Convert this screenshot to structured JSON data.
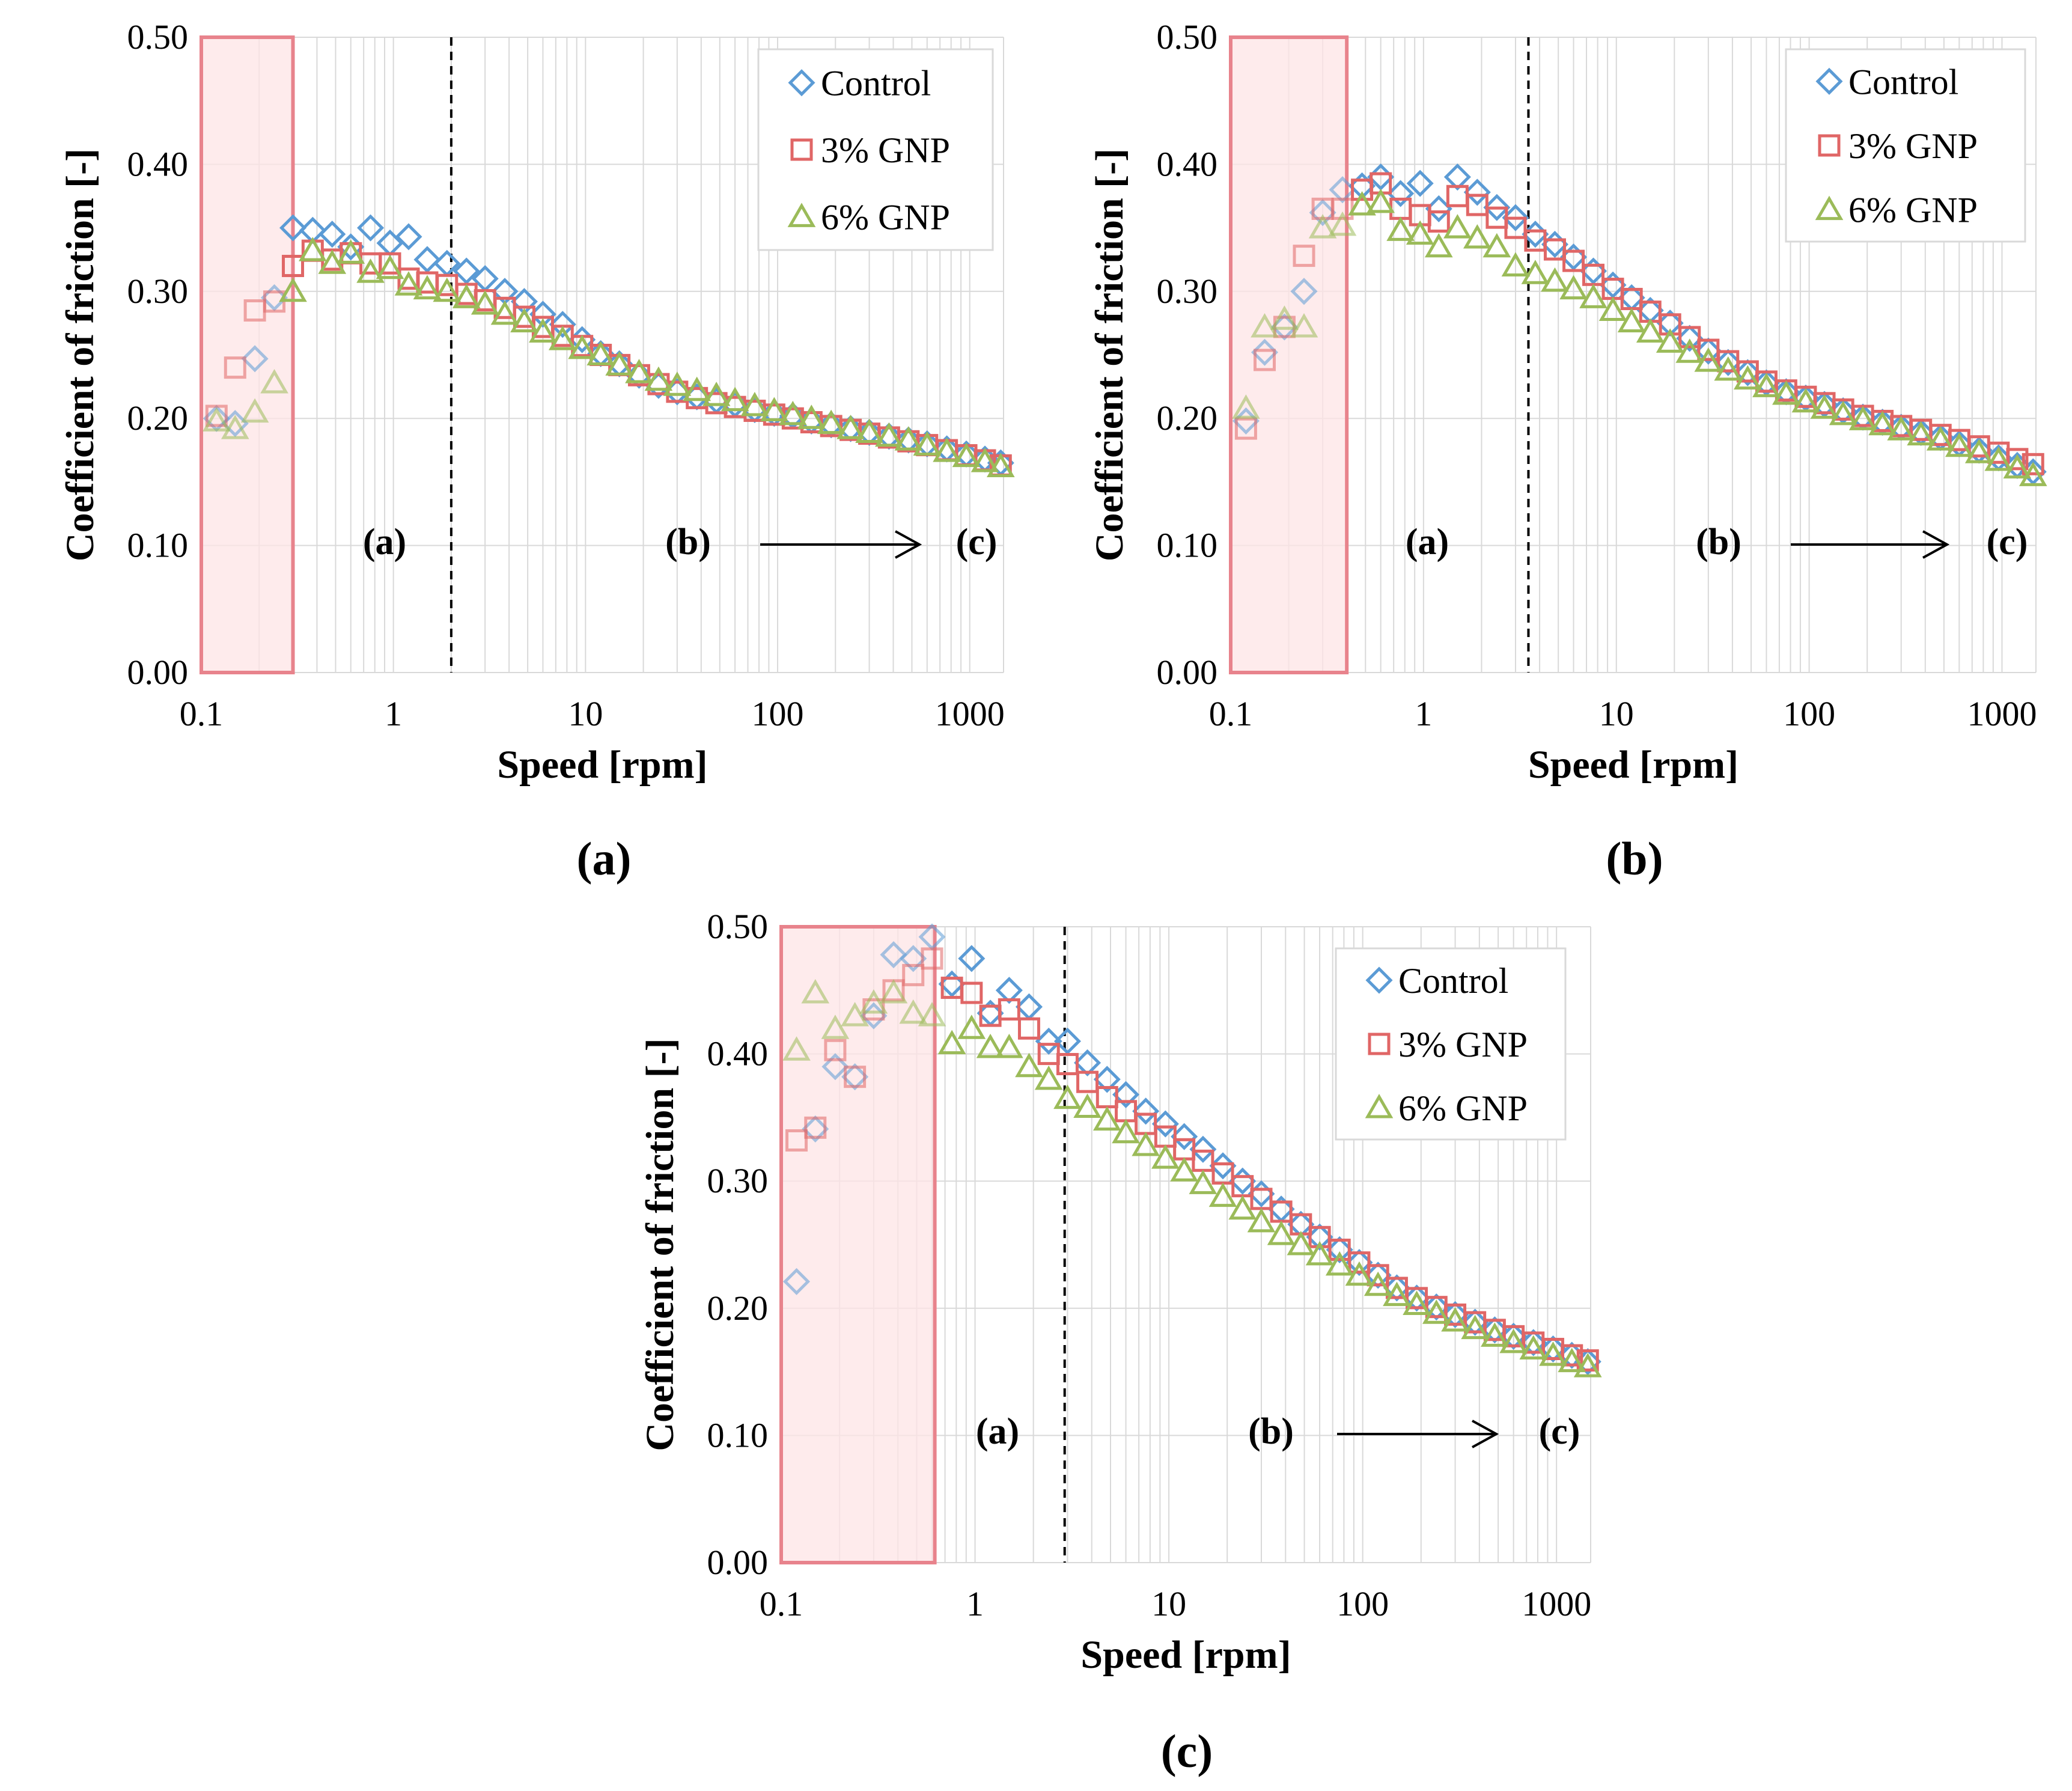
{
  "figure": {
    "panel_captions": [
      "(a)",
      "(b)",
      "(c)"
    ]
  },
  "colors": {
    "control": "#5b9bd5",
    "gnp3": "#e06666",
    "gnp6": "#9bbb59",
    "highlight_fill": "#fde4e6",
    "highlight_stroke": "#e8838c",
    "grid": "#d9d9d9"
  },
  "chart_data": [
    {
      "type": "scatter",
      "panel": "(a)",
      "xscale": "log",
      "xlim": [
        0.1,
        1500
      ],
      "ylim": [
        0,
        0.5
      ],
      "xlabel": "Speed [rpm]",
      "ylabel": "Coefficient of friction [-]",
      "xticks": [
        0.1,
        1,
        10,
        100,
        1000
      ],
      "xtick_labels": [
        "0.1",
        "1",
        "10",
        "100",
        "1000"
      ],
      "yticks": [
        0,
        0.1,
        0.2,
        0.3,
        0.4,
        0.5
      ],
      "ytick_labels": [
        "0.00",
        "0.10",
        "0.20",
        "0.30",
        "0.40",
        "0.50"
      ],
      "legend": [
        "Control",
        "3% GNP",
        "6% GNP"
      ],
      "legend_position": "top-right",
      "highlight_x": [
        0.1,
        0.3
      ],
      "dashed_line_x": 2.0,
      "regions": [
        "(a)",
        "(b)",
        "(c)"
      ],
      "series": [
        {
          "name": "Control",
          "marker": "diamond",
          "x": [
            0.12,
            0.15,
            0.19,
            0.24,
            0.3,
            0.38,
            0.48,
            0.6,
            0.76,
            0.96,
            1.2,
            1.5,
            1.9,
            2.4,
            3.0,
            3.8,
            4.8,
            6.0,
            7.6,
            9.6,
            12,
            15,
            19,
            24,
            30,
            38,
            48,
            60,
            76,
            96,
            120,
            150,
            190,
            240,
            300,
            380,
            480,
            600,
            760,
            960,
            1200,
            1450
          ],
          "y": [
            0.2,
            0.196,
            0.247,
            0.295,
            0.35,
            0.348,
            0.345,
            0.335,
            0.35,
            0.338,
            0.343,
            0.325,
            0.322,
            0.316,
            0.31,
            0.3,
            0.292,
            0.282,
            0.274,
            0.262,
            0.251,
            0.243,
            0.234,
            0.226,
            0.221,
            0.217,
            0.214,
            0.211,
            0.207,
            0.204,
            0.202,
            0.198,
            0.195,
            0.192,
            0.189,
            0.186,
            0.183,
            0.18,
            0.176,
            0.172,
            0.168,
            0.165
          ]
        },
        {
          "name": "3% GNP",
          "marker": "square",
          "x": [
            0.12,
            0.15,
            0.19,
            0.24,
            0.3,
            0.38,
            0.48,
            0.6,
            0.76,
            0.96,
            1.2,
            1.5,
            1.9,
            2.4,
            3.0,
            3.8,
            4.8,
            6.0,
            7.6,
            9.6,
            12,
            15,
            19,
            24,
            30,
            38,
            48,
            60,
            76,
            96,
            120,
            150,
            190,
            240,
            300,
            380,
            480,
            600,
            760,
            960,
            1200,
            1450
          ],
          "y": [
            0.202,
            0.24,
            0.285,
            0.292,
            0.32,
            0.332,
            0.325,
            0.33,
            0.322,
            0.322,
            0.31,
            0.307,
            0.305,
            0.298,
            0.293,
            0.287,
            0.28,
            0.272,
            0.265,
            0.257,
            0.25,
            0.242,
            0.234,
            0.227,
            0.221,
            0.216,
            0.212,
            0.209,
            0.206,
            0.203,
            0.2,
            0.197,
            0.194,
            0.191,
            0.188,
            0.185,
            0.182,
            0.179,
            0.175,
            0.171,
            0.167,
            0.163
          ]
        },
        {
          "name": "6% GNP",
          "marker": "triangle",
          "x": [
            0.12,
            0.15,
            0.19,
            0.24,
            0.3,
            0.38,
            0.48,
            0.6,
            0.76,
            0.96,
            1.2,
            1.5,
            1.9,
            2.4,
            3.0,
            3.8,
            4.8,
            6.0,
            7.6,
            9.6,
            12,
            15,
            19,
            24,
            30,
            38,
            48,
            60,
            76,
            96,
            120,
            150,
            190,
            240,
            300,
            380,
            480,
            600,
            760,
            960,
            1200,
            1450
          ],
          "y": [
            0.198,
            0.192,
            0.205,
            0.228,
            0.3,
            0.332,
            0.322,
            0.33,
            0.315,
            0.318,
            0.305,
            0.302,
            0.3,
            0.295,
            0.29,
            0.282,
            0.276,
            0.268,
            0.262,
            0.255,
            0.25,
            0.242,
            0.236,
            0.23,
            0.226,
            0.222,
            0.218,
            0.214,
            0.21,
            0.206,
            0.203,
            0.2,
            0.196,
            0.192,
            0.189,
            0.186,
            0.183,
            0.179,
            0.174,
            0.17,
            0.166,
            0.162
          ]
        }
      ]
    },
    {
      "type": "scatter",
      "panel": "(b)",
      "xscale": "log",
      "xlim": [
        0.1,
        1500
      ],
      "ylim": [
        0,
        0.5
      ],
      "xlabel": "Speed [rpm]",
      "ylabel": "Coefficient of friction [-]",
      "xticks": [
        0.1,
        1,
        10,
        100,
        1000
      ],
      "xtick_labels": [
        "0.1",
        "1",
        "10",
        "100",
        "1000"
      ],
      "yticks": [
        0,
        0.1,
        0.2,
        0.3,
        0.4,
        0.5
      ],
      "ytick_labels": [
        "0.00",
        "0.10",
        "0.20",
        "0.30",
        "0.40",
        "0.50"
      ],
      "legend": [
        "Control",
        "3% GNP",
        "6% GNP"
      ],
      "legend_position": "top-right",
      "highlight_x": [
        0.1,
        0.4
      ],
      "dashed_line_x": 3.5,
      "regions": [
        "(a)",
        "(b)",
        "(c)"
      ],
      "series": [
        {
          "name": "Control",
          "marker": "diamond",
          "x": [
            0.12,
            0.15,
            0.19,
            0.24,
            0.3,
            0.38,
            0.48,
            0.6,
            0.76,
            0.96,
            1.2,
            1.5,
            1.9,
            2.4,
            3.0,
            3.8,
            4.8,
            6.0,
            7.6,
            9.6,
            12,
            15,
            19,
            24,
            30,
            38,
            48,
            60,
            76,
            96,
            120,
            150,
            190,
            240,
            300,
            380,
            480,
            600,
            760,
            960,
            1200,
            1450
          ],
          "y": [
            0.198,
            0.252,
            0.272,
            0.3,
            0.362,
            0.38,
            0.383,
            0.39,
            0.377,
            0.385,
            0.365,
            0.39,
            0.378,
            0.366,
            0.358,
            0.345,
            0.337,
            0.327,
            0.316,
            0.305,
            0.295,
            0.285,
            0.275,
            0.263,
            0.253,
            0.244,
            0.236,
            0.228,
            0.221,
            0.216,
            0.211,
            0.206,
            0.201,
            0.197,
            0.193,
            0.189,
            0.185,
            0.18,
            0.175,
            0.169,
            0.163,
            0.158
          ]
        },
        {
          "name": "3% GNP",
          "marker": "square",
          "x": [
            0.12,
            0.15,
            0.19,
            0.24,
            0.3,
            0.38,
            0.48,
            0.6,
            0.76,
            0.96,
            1.2,
            1.5,
            1.9,
            2.4,
            3.0,
            3.8,
            4.8,
            6.0,
            7.6,
            9.6,
            12,
            15,
            19,
            24,
            30,
            38,
            48,
            60,
            76,
            96,
            120,
            150,
            190,
            240,
            300,
            380,
            480,
            600,
            760,
            960,
            1200,
            1450
          ],
          "y": [
            0.192,
            0.246,
            0.272,
            0.328,
            0.365,
            0.365,
            0.38,
            0.385,
            0.365,
            0.36,
            0.355,
            0.375,
            0.368,
            0.358,
            0.35,
            0.34,
            0.333,
            0.324,
            0.313,
            0.302,
            0.294,
            0.284,
            0.274,
            0.264,
            0.254,
            0.245,
            0.237,
            0.229,
            0.222,
            0.217,
            0.212,
            0.207,
            0.202,
            0.198,
            0.194,
            0.191,
            0.187,
            0.183,
            0.178,
            0.173,
            0.168,
            0.164
          ]
        },
        {
          "name": "6% GNP",
          "marker": "triangle",
          "x": [
            0.12,
            0.15,
            0.19,
            0.24,
            0.3,
            0.38,
            0.48,
            0.6,
            0.76,
            0.96,
            1.2,
            1.5,
            1.9,
            2.4,
            3.0,
            3.8,
            4.8,
            6.0,
            7.6,
            9.6,
            12,
            15,
            19,
            24,
            30,
            38,
            48,
            60,
            76,
            96,
            120,
            150,
            190,
            240,
            300,
            380,
            480,
            600,
            760,
            960,
            1200,
            1450
          ],
          "y": [
            0.208,
            0.272,
            0.278,
            0.272,
            0.35,
            0.352,
            0.368,
            0.37,
            0.348,
            0.345,
            0.335,
            0.35,
            0.342,
            0.335,
            0.32,
            0.314,
            0.308,
            0.302,
            0.295,
            0.285,
            0.276,
            0.268,
            0.26,
            0.252,
            0.245,
            0.238,
            0.231,
            0.225,
            0.219,
            0.213,
            0.208,
            0.203,
            0.199,
            0.195,
            0.191,
            0.187,
            0.183,
            0.178,
            0.173,
            0.167,
            0.161,
            0.155
          ]
        }
      ]
    },
    {
      "type": "scatter",
      "panel": "(c)",
      "xscale": "log",
      "xlim": [
        0.1,
        1500
      ],
      "ylim": [
        0,
        0.5
      ],
      "xlabel": "Speed [rpm]",
      "ylabel": "Coefficient of friction [-]",
      "xticks": [
        0.1,
        1,
        10,
        100,
        1000
      ],
      "xtick_labels": [
        "0.1",
        "1",
        "10",
        "100",
        "1000"
      ],
      "yticks": [
        0,
        0.1,
        0.2,
        0.3,
        0.4,
        0.5
      ],
      "ytick_labels": [
        "0.00",
        "0.10",
        "0.20",
        "0.30",
        "0.40",
        "0.50"
      ],
      "legend": [
        "Control",
        "3% GNP",
        "6% GNP"
      ],
      "legend_position": "top-right",
      "highlight_x": [
        0.1,
        0.62
      ],
      "dashed_line_x": 2.9,
      "regions": [
        "(a)",
        "(b)",
        "(c)"
      ],
      "series": [
        {
          "name": "Control",
          "marker": "diamond",
          "x": [
            0.12,
            0.15,
            0.19,
            0.24,
            0.3,
            0.38,
            0.48,
            0.6,
            0.76,
            0.96,
            1.2,
            1.5,
            1.9,
            2.4,
            3.0,
            3.8,
            4.8,
            6.0,
            7.6,
            9.6,
            12,
            15,
            19,
            24,
            30,
            38,
            48,
            60,
            76,
            96,
            120,
            150,
            190,
            240,
            300,
            380,
            480,
            600,
            760,
            960,
            1200,
            1450
          ],
          "y": [
            0.221,
            0.341,
            0.39,
            0.382,
            0.43,
            0.478,
            0.475,
            0.492,
            0.455,
            0.475,
            0.432,
            0.45,
            0.437,
            0.41,
            0.41,
            0.393,
            0.38,
            0.368,
            0.355,
            0.345,
            0.335,
            0.325,
            0.312,
            0.3,
            0.29,
            0.278,
            0.266,
            0.256,
            0.246,
            0.236,
            0.226,
            0.216,
            0.208,
            0.201,
            0.195,
            0.189,
            0.183,
            0.178,
            0.173,
            0.168,
            0.163,
            0.158
          ]
        },
        {
          "name": "3% GNP",
          "marker": "square",
          "x": [
            0.12,
            0.15,
            0.19,
            0.24,
            0.3,
            0.38,
            0.48,
            0.6,
            0.76,
            0.96,
            1.2,
            1.5,
            1.9,
            2.4,
            3.0,
            3.8,
            4.8,
            6.0,
            7.6,
            9.6,
            12,
            15,
            19,
            24,
            30,
            38,
            48,
            60,
            76,
            96,
            120,
            150,
            190,
            240,
            300,
            380,
            480,
            600,
            760,
            960,
            1200,
            1450
          ],
          "y": [
            0.332,
            0.342,
            0.403,
            0.382,
            0.435,
            0.45,
            0.462,
            0.475,
            0.452,
            0.448,
            0.43,
            0.435,
            0.42,
            0.4,
            0.392,
            0.378,
            0.366,
            0.355,
            0.345,
            0.335,
            0.325,
            0.316,
            0.306,
            0.296,
            0.286,
            0.276,
            0.266,
            0.256,
            0.246,
            0.236,
            0.226,
            0.216,
            0.208,
            0.201,
            0.195,
            0.189,
            0.183,
            0.178,
            0.173,
            0.168,
            0.163,
            0.159
          ]
        },
        {
          "name": "6% GNP",
          "marker": "triangle",
          "x": [
            0.12,
            0.15,
            0.19,
            0.24,
            0.3,
            0.38,
            0.48,
            0.6,
            0.76,
            0.96,
            1.2,
            1.5,
            1.9,
            2.4,
            3.0,
            3.8,
            4.8,
            6.0,
            7.6,
            9.6,
            12,
            15,
            19,
            24,
            30,
            38,
            48,
            60,
            76,
            96,
            120,
            150,
            190,
            240,
            300,
            380,
            480,
            600,
            760,
            960,
            1200,
            1450
          ],
          "y": [
            0.403,
            0.448,
            0.42,
            0.43,
            0.44,
            0.448,
            0.432,
            0.43,
            0.408,
            0.42,
            0.405,
            0.405,
            0.39,
            0.38,
            0.365,
            0.358,
            0.348,
            0.338,
            0.328,
            0.318,
            0.308,
            0.298,
            0.288,
            0.278,
            0.268,
            0.258,
            0.25,
            0.242,
            0.234,
            0.226,
            0.218,
            0.21,
            0.203,
            0.196,
            0.19,
            0.184,
            0.178,
            0.173,
            0.168,
            0.163,
            0.158,
            0.154
          ]
        }
      ]
    }
  ]
}
